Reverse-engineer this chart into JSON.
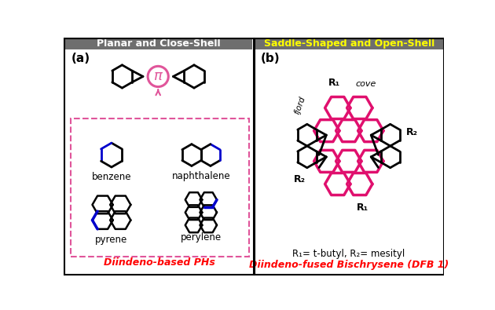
{
  "left_title": "Planar and Close-Shell",
  "right_title": "Saddle-Shaped and Open-Shell",
  "left_title_color": "#ffffff",
  "right_title_color": "#ffff00",
  "header_bg": "#6e6e6e",
  "panel_bg": "#ffffff",
  "border_color": "#000000",
  "left_label_a": "(a)",
  "right_label_b": "(b)",
  "dashed_box_color": "#e0559a",
  "dashed_box_label": "Diindeno-based PHs",
  "right_bottom_label": "Diindeno-fused Bischrysene (DFB 1)",
  "right_sub_label": "R₁= t-butyl, R₂= mesityl",
  "label_color_red": "#ff0000",
  "pi_circle_color": "#e0559a",
  "blue_bond_color": "#0000cc",
  "pink_struct_color": "#e0106e",
  "black_struct_color": "#000000",
  "benzene_label": "benzene",
  "naphthalene_label": "naphthalene",
  "pyrene_label": "pyrene",
  "perylene_label": "perylene",
  "cove_label": "cove",
  "fjord_label": "fjord",
  "R1_label": "R₁",
  "R2_label": "R₂"
}
